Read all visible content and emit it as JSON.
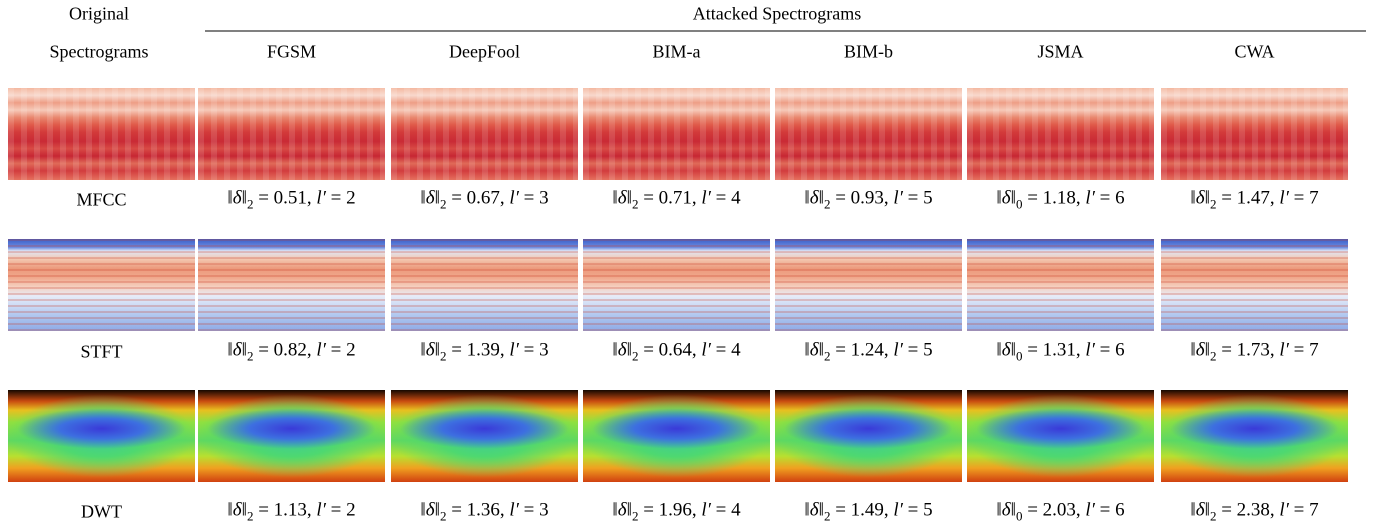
{
  "header": {
    "original": "Original",
    "spectrograms": "Spectrograms",
    "attacked": "Attacked Spectrograms",
    "methods": [
      "FGSM",
      "DeepFool",
      "BIM-a",
      "BIM-b",
      "JSMA",
      "CWA"
    ]
  },
  "rows": [
    {
      "label": "MFCC",
      "captions": [
        [
          "‖δ‖",
          "2",
          " = 0.51, ",
          "l′",
          " = 2"
        ],
        [
          "‖δ‖",
          "2",
          " = 0.67, ",
          "l′",
          " = 3"
        ],
        [
          "‖δ‖",
          "2",
          " = 0.71, ",
          "l′",
          " = 4"
        ],
        [
          "‖δ‖",
          "2",
          " = 0.93, ",
          "l′",
          " = 5"
        ],
        [
          "‖δ‖",
          "0",
          " = 1.18, ",
          "l′",
          " = 6"
        ],
        [
          "‖δ‖",
          "2",
          " = 1.47, ",
          "l′",
          " = 7"
        ]
      ]
    },
    {
      "label": "STFT",
      "captions": [
        [
          "‖δ‖",
          "2",
          " = 0.82, ",
          "l′",
          " = 2"
        ],
        [
          "‖δ‖",
          "2",
          " = 1.39, ",
          "l′",
          " = 3"
        ],
        [
          "‖δ‖",
          "2",
          " = 0.64, ",
          "l′",
          " = 4"
        ],
        [
          "‖δ‖",
          "2",
          " = 1.24, ",
          "l′",
          " = 5"
        ],
        [
          "‖δ‖",
          "0",
          " = 1.31, ",
          "l′",
          " = 6"
        ],
        [
          "‖δ‖",
          "2",
          " = 1.73, ",
          "l′",
          " = 7"
        ]
      ]
    },
    {
      "label": "DWT",
      "captions": [
        [
          "‖δ‖",
          "2",
          " = 1.13, ",
          "l′",
          " = 2"
        ],
        [
          "‖δ‖",
          "2",
          " = 1.36, ",
          "l′",
          " = 3"
        ],
        [
          "‖δ‖",
          "2",
          " = 1.96, ",
          "l′",
          " = 4"
        ],
        [
          "‖δ‖",
          "2",
          " = 1.49, ",
          "l′",
          " = 5"
        ],
        [
          "‖δ‖",
          "0",
          " = 2.03, ",
          "l′",
          " = 6"
        ],
        [
          "‖δ‖",
          "2",
          " = 2.38, ",
          "l′",
          " = 7"
        ]
      ]
    }
  ]
}
